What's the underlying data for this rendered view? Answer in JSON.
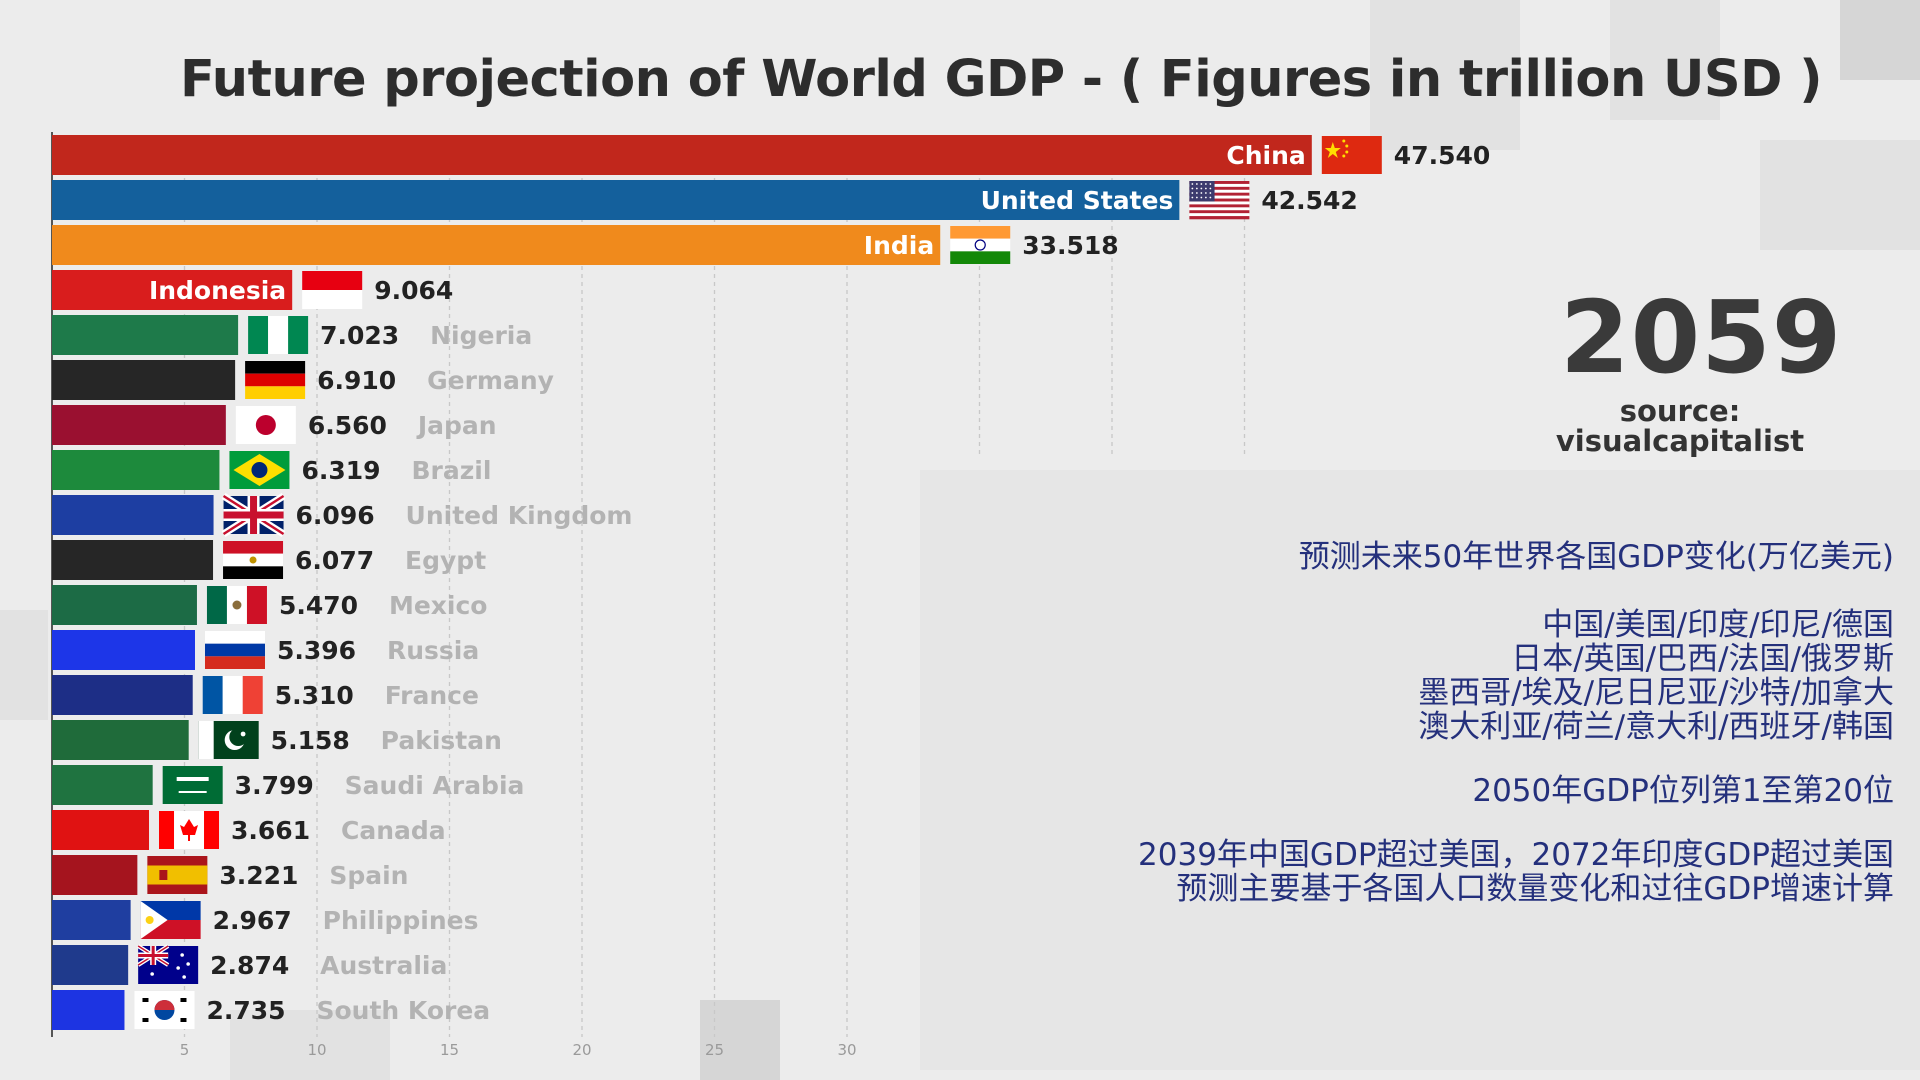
{
  "page": {
    "title": "Future projection of World GDP  - ( Figures in trillion USD )",
    "year": "2059",
    "source_line1": "source:",
    "source_line2": "visualcapitalist"
  },
  "annotations": {
    "line1": "预测未来50年世界各国GDP变化(万亿美元)",
    "line2": "中国/美国/印度/印尼/德国",
    "line3": "日本/英国/巴西/法国/俄罗斯",
    "line4": "墨西哥/埃及/尼日尼亚/沙特/加拿大",
    "line5": "澳大利亚/荷兰/意大利/西班牙/韩国",
    "line6": "2050年GDP位列第1至第20位",
    "line7": "2039年中国GDP超过美国，2072年印度GDP超过美国",
    "line8": "预测主要基于各国人口数量变化和过往GDP增速计算"
  },
  "chart_data": {
    "type": "bar",
    "orientation": "horizontal",
    "title": "Future projection of World GDP  - ( Figures in trillion USD )",
    "xlabel": "",
    "ylabel": "",
    "xlim": [
      0,
      47.54
    ],
    "x_ticks": [
      "5",
      "10",
      "15",
      "20",
      "25",
      "30"
    ],
    "x_tick_values": [
      5,
      10,
      15,
      20,
      25,
      30
    ],
    "grid": true,
    "categories": [
      "China",
      "United States",
      "India",
      "Indonesia",
      "Nigeria",
      "Germany",
      "Japan",
      "Brazil",
      "United Kingdom",
      "Egypt",
      "Mexico",
      "Russia",
      "France",
      "Pakistan",
      "Saudi Arabia",
      "Canada",
      "Spain",
      "Philippines",
      "Australia",
      "South Korea"
    ],
    "values": [
      47.54,
      42.542,
      33.518,
      9.064,
      7.023,
      6.91,
      6.56,
      6.319,
      6.096,
      6.077,
      5.47,
      5.396,
      5.31,
      5.158,
      3.799,
      3.661,
      3.221,
      2.967,
      2.874,
      2.735
    ],
    "value_labels": [
      "47.540",
      "42.542",
      "33.518",
      "9.064",
      "7.023",
      "6.910",
      "6.560",
      "6.319",
      "6.096",
      "6.077",
      "5.470",
      "5.396",
      "5.310",
      "5.158",
      "3.799",
      "3.661",
      "3.221",
      "2.967",
      "2.874",
      "2.735"
    ],
    "bar_colors": [
      "#c1271c",
      "#14609c",
      "#f08a1c",
      "#d91d1d",
      "#1e7a4a",
      "#262626",
      "#9a1030",
      "#1d8a3c",
      "#1d3ea2",
      "#262626",
      "#1c6b45",
      "#1d36e8",
      "#1d2e86",
      "#1f6b3a",
      "#1f7340",
      "#e01212",
      "#a5141e",
      "#1f3ea0",
      "#1f3a8c",
      "#1d34e2"
    ],
    "flags": [
      "china-flag",
      "united-states-flag",
      "india-flag",
      "indonesia-flag",
      "nigeria-flag",
      "germany-flag",
      "japan-flag",
      "brazil-flag",
      "united-kingdom-flag",
      "egypt-flag",
      "mexico-flag",
      "russia-flag",
      "france-flag",
      "pakistan-flag",
      "saudi-arabia-flag",
      "canada-flag",
      "spain-flag",
      "philippines-flag",
      "australia-flag",
      "south-korea-flag"
    ],
    "label_inside_bar": [
      true,
      true,
      true,
      true,
      false,
      false,
      false,
      false,
      false,
      false,
      false,
      false,
      false,
      false,
      false,
      false,
      false,
      false,
      false,
      false
    ]
  }
}
